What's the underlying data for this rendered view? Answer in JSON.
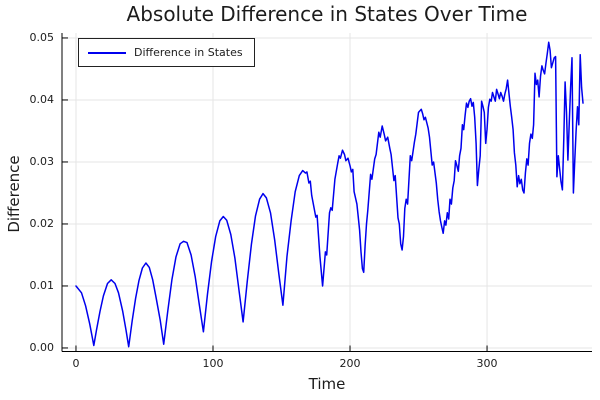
{
  "chart_data": {
    "type": "line",
    "title": "Absolute Difference in States Over Time",
    "xlabel": "Time",
    "ylabel": "Difference",
    "xlim": [
      -10.2,
      376.6
    ],
    "ylim": [
      -0.00057,
      0.0508
    ],
    "xticks": [
      0,
      100,
      200,
      300
    ],
    "xtick_labels": [
      "0",
      "100",
      "200",
      "300"
    ],
    "yticks": [
      0,
      0.01,
      0.02,
      0.03,
      0.04,
      0.05
    ],
    "ytick_labels": [
      "0.00",
      "0.01",
      "0.02",
      "0.03",
      "0.04",
      "0.05"
    ],
    "grid": true,
    "grid_color": "#e5e5e5",
    "axis_color": "#000000",
    "background": "#ffffff",
    "legend_position": "top-left",
    "series": [
      {
        "name": "Difference in States",
        "color": "#0000ee",
        "line_width": 1.5,
        "points": [
          [
            0,
            0.01
          ],
          [
            4,
            0.0089
          ],
          [
            7,
            0.0068
          ],
          [
            10,
            0.0039
          ],
          [
            12,
            0.0016
          ],
          [
            13,
            0.0004
          ],
          [
            15,
            0.0029
          ],
          [
            17.5,
            0.0059
          ],
          [
            20,
            0.0084
          ],
          [
            23,
            0.0104
          ],
          [
            25.7,
            0.011
          ],
          [
            28.5,
            0.0104
          ],
          [
            31,
            0.0089
          ],
          [
            34,
            0.006
          ],
          [
            36.5,
            0.0029
          ],
          [
            38.5,
            0.0002
          ],
          [
            41,
            0.0044
          ],
          [
            43.5,
            0.008
          ],
          [
            46,
            0.0109
          ],
          [
            48.5,
            0.0129
          ],
          [
            51,
            0.0137
          ],
          [
            53.5,
            0.013
          ],
          [
            56,
            0.011
          ],
          [
            58.5,
            0.0081
          ],
          [
            61.5,
            0.0045
          ],
          [
            64,
            0.0006
          ],
          [
            67,
            0.006
          ],
          [
            70,
            0.011
          ],
          [
            73,
            0.0147
          ],
          [
            76,
            0.0168
          ],
          [
            78.5,
            0.0172
          ],
          [
            81,
            0.017
          ],
          [
            84,
            0.015
          ],
          [
            87,
            0.0115
          ],
          [
            90,
            0.007
          ],
          [
            93,
            0.0026
          ],
          [
            96,
            0.0087
          ],
          [
            99,
            0.014
          ],
          [
            102,
            0.018
          ],
          [
            105,
            0.0205
          ],
          [
            107.5,
            0.0212
          ],
          [
            110,
            0.0206
          ],
          [
            113,
            0.0183
          ],
          [
            116,
            0.0145
          ],
          [
            119,
            0.0093
          ],
          [
            122,
            0.0042
          ],
          [
            125,
            0.0108
          ],
          [
            128,
            0.0167
          ],
          [
            131,
            0.0213
          ],
          [
            134,
            0.024
          ],
          [
            136.5,
            0.0249
          ],
          [
            139,
            0.0242
          ],
          [
            142,
            0.0218
          ],
          [
            145,
            0.0174
          ],
          [
            148,
            0.012
          ],
          [
            151,
            0.0069
          ],
          [
            154,
            0.0148
          ],
          [
            157,
            0.0205
          ],
          [
            160,
            0.0252
          ],
          [
            163,
            0.0278
          ],
          [
            165.5,
            0.0286
          ],
          [
            167.5,
            0.0282
          ],
          [
            168.5,
            0.0284
          ],
          [
            170,
            0.0266
          ],
          [
            171,
            0.0269
          ],
          [
            172,
            0.0246
          ],
          [
            175,
            0.0211
          ],
          [
            176,
            0.0214
          ],
          [
            178,
            0.0148
          ],
          [
            180,
            0.01
          ],
          [
            182,
            0.0155
          ],
          [
            183,
            0.015
          ],
          [
            185,
            0.0218
          ],
          [
            186,
            0.0226
          ],
          [
            187,
            0.0222
          ],
          [
            189,
            0.0272
          ],
          [
            191,
            0.0298
          ],
          [
            192,
            0.031
          ],
          [
            193,
            0.0306
          ],
          [
            194.5,
            0.0319
          ],
          [
            196,
            0.0312
          ],
          [
            197,
            0.0302
          ],
          [
            198.5,
            0.0306
          ],
          [
            200,
            0.0294
          ],
          [
            201,
            0.0284
          ],
          [
            202,
            0.0288
          ],
          [
            203,
            0.0252
          ],
          [
            205,
            0.0232
          ],
          [
            206,
            0.0212
          ],
          [
            207,
            0.019
          ],
          [
            208,
            0.0155
          ],
          [
            209,
            0.0128
          ],
          [
            210,
            0.0122
          ],
          [
            211,
            0.0165
          ],
          [
            212,
            0.02
          ],
          [
            213,
            0.0222
          ],
          [
            215,
            0.028
          ],
          [
            216,
            0.0272
          ],
          [
            218,
            0.0305
          ],
          [
            219,
            0.0312
          ],
          [
            221,
            0.0348
          ],
          [
            222,
            0.034
          ],
          [
            223.5,
            0.0358
          ],
          [
            225,
            0.0344
          ],
          [
            226,
            0.0334
          ],
          [
            227.5,
            0.034
          ],
          [
            229,
            0.0322
          ],
          [
            230,
            0.0312
          ],
          [
            232,
            0.027
          ],
          [
            233,
            0.0278
          ],
          [
            235,
            0.021
          ],
          [
            236,
            0.02
          ],
          [
            237,
            0.0168
          ],
          [
            238,
            0.0158
          ],
          [
            239,
            0.018
          ],
          [
            240,
            0.0225
          ],
          [
            241,
            0.024
          ],
          [
            242,
            0.0232
          ],
          [
            244,
            0.031
          ],
          [
            245,
            0.0302
          ],
          [
            247,
            0.0332
          ],
          [
            248,
            0.0345
          ],
          [
            250,
            0.038
          ],
          [
            252,
            0.0385
          ],
          [
            253,
            0.0378
          ],
          [
            254,
            0.0368
          ],
          [
            255,
            0.0372
          ],
          [
            257,
            0.0355
          ],
          [
            258,
            0.034
          ],
          [
            260,
            0.0295
          ],
          [
            261,
            0.03
          ],
          [
            263,
            0.0266
          ],
          [
            264,
            0.024
          ],
          [
            265,
            0.022
          ],
          [
            266,
            0.0205
          ],
          [
            267,
            0.0195
          ],
          [
            268,
            0.0185
          ],
          [
            269,
            0.0205
          ],
          [
            270,
            0.0198
          ],
          [
            271,
            0.0218
          ],
          [
            272,
            0.0208
          ],
          [
            273,
            0.024
          ],
          [
            274,
            0.0232
          ],
          [
            275,
            0.0258
          ],
          [
            276,
            0.027
          ],
          [
            277,
            0.0302
          ],
          [
            278,
            0.0294
          ],
          [
            279,
            0.0285
          ],
          [
            280,
            0.031
          ],
          [
            281,
            0.0322
          ],
          [
            282,
            0.036
          ],
          [
            283,
            0.0352
          ],
          [
            284,
            0.0375
          ],
          [
            285,
            0.0395
          ],
          [
            286,
            0.0388
          ],
          [
            287,
            0.0398
          ],
          [
            288,
            0.0402
          ],
          [
            289,
            0.039
          ],
          [
            290,
            0.0396
          ],
          [
            291,
            0.0372
          ],
          [
            292,
            0.033
          ],
          [
            293,
            0.0262
          ],
          [
            294,
            0.0288
          ],
          [
            295,
            0.031
          ],
          [
            296,
            0.0398
          ],
          [
            297,
            0.039
          ],
          [
            298,
            0.038
          ],
          [
            299,
            0.033
          ],
          [
            300,
            0.0352
          ],
          [
            301,
            0.0388
          ],
          [
            302,
            0.0401
          ],
          [
            303,
            0.0398
          ],
          [
            304,
            0.0412
          ],
          [
            305,
            0.0405
          ],
          [
            306,
            0.0398
          ],
          [
            307,
            0.0417
          ],
          [
            308,
            0.041
          ],
          [
            309,
            0.0402
          ],
          [
            310,
            0.0412
          ],
          [
            311,
            0.0406
          ],
          [
            312,
            0.0398
          ],
          [
            313,
            0.041
          ],
          [
            314,
            0.0418
          ],
          [
            315,
            0.0432
          ],
          [
            316,
            0.041
          ],
          [
            317,
            0.039
          ],
          [
            318,
            0.0372
          ],
          [
            319,
            0.0352
          ],
          [
            320,
            0.0315
          ],
          [
            321,
            0.0295
          ],
          [
            322,
            0.026
          ],
          [
            323,
            0.0278
          ],
          [
            324,
            0.0265
          ],
          [
            325,
            0.0272
          ],
          [
            326,
            0.0255
          ],
          [
            327,
            0.025
          ],
          [
            328,
            0.0282
          ],
          [
            329,
            0.0305
          ],
          [
            330,
            0.0295
          ],
          [
            331,
            0.033
          ],
          [
            332,
            0.0345
          ],
          [
            333,
            0.0338
          ],
          [
            334,
            0.036
          ],
          [
            335,
            0.0443
          ],
          [
            336,
            0.0425
          ],
          [
            337,
            0.0432
          ],
          [
            338,
            0.0405
          ],
          [
            339,
            0.0438
          ],
          [
            340,
            0.0455
          ],
          [
            341,
            0.0448
          ],
          [
            342,
            0.0442
          ],
          [
            343,
            0.046
          ],
          [
            344,
            0.0475
          ],
          [
            345,
            0.0493
          ],
          [
            346,
            0.048
          ],
          [
            347,
            0.0452
          ],
          [
            348,
            0.046
          ],
          [
            349,
            0.0468
          ],
          [
            350,
            0.047
          ],
          [
            351,
            0.0276
          ],
          [
            352,
            0.031
          ],
          [
            353,
            0.0288
          ],
          [
            354,
            0.0268
          ],
          [
            355,
            0.0255
          ],
          [
            356,
            0.0338
          ],
          [
            357,
            0.0429
          ],
          [
            358,
            0.038
          ],
          [
            359,
            0.0303
          ],
          [
            360,
            0.0365
          ],
          [
            361,
            0.042
          ],
          [
            362,
            0.0468
          ],
          [
            363,
            0.025
          ],
          [
            364,
            0.03
          ],
          [
            365,
            0.035
          ],
          [
            366,
            0.0389
          ],
          [
            367,
            0.036
          ],
          [
            368,
            0.0473
          ],
          [
            369,
            0.042
          ],
          [
            370,
            0.0395
          ]
        ]
      }
    ]
  }
}
